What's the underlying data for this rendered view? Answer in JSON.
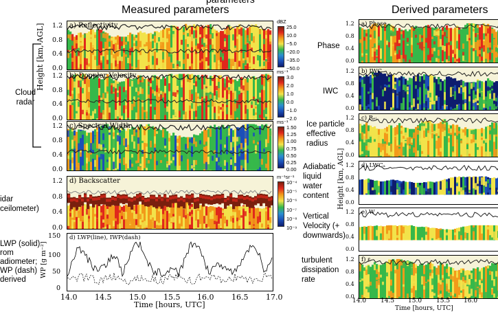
{
  "titles": {
    "partial_top": "parameters",
    "measured": "Measured parameters",
    "derived": "Derived parameters"
  },
  "left_labels": {
    "cloud_radar": [
      "Cloud",
      "radar"
    ],
    "lidar": [
      "idar",
      "ceilometer)"
    ],
    "lwp": [
      "LWP (solid)",
      "rom",
      "adiometer;",
      "WP (dash)",
      "derived"
    ]
  },
  "mid_labels": {
    "phase": "Phase",
    "iwc": "IWC",
    "ice_radius": [
      "Ice particle",
      "effective",
      "radius"
    ],
    "adiabatic": [
      "Adiabatic",
      "liquid",
      "water",
      "content"
    ],
    "vertical": [
      "Vertical",
      "Velocity (+",
      "downwards)"
    ],
    "turbulent": [
      "turbulent",
      "dissipation",
      "rate"
    ]
  },
  "measured": {
    "ylabel": "Height [km, AGL]",
    "yticks": [
      "0.0",
      "0.4",
      "0.8",
      "1.2"
    ],
    "panels": [
      {
        "title": "a) Reflectivity",
        "unit": "dBZ",
        "ticks": [
          "25.0",
          "10.0",
          "−5.0",
          "−20.0",
          "−35.0",
          "−50.0"
        ]
      },
      {
        "title": "b) Doppler Velocity",
        "unit": "ms⁻¹",
        "ticks": [
          "3.0",
          "2.0",
          "1.0",
          "0.0",
          "−1.0",
          "−2.0"
        ]
      },
      {
        "title": "c) Spectral Width",
        "unit": "ms⁻¹",
        "ticks": [
          "1.50",
          "1.25",
          "1.00",
          "0.75",
          "0.50",
          "0.25",
          "0.00"
        ]
      },
      {
        "title": "d) Backscatter",
        "unit": "m⁻¹sr⁻¹",
        "ticks": [
          "10⁻⁴",
          "10⁻⁵",
          "10⁻⁶",
          "10⁻⁷",
          "10⁻⁸",
          "10⁻⁹"
        ]
      }
    ],
    "lwp_panel": {
      "title": "d) LWP(line), IWP(dash)",
      "ylabel": "WP [g m⁻²]",
      "yticks": [
        "0",
        "50",
        "100",
        "150"
      ]
    },
    "xticks": [
      "14.0",
      "14.5",
      "15.0",
      "15.5",
      "16.0",
      "16.5",
      "17.0"
    ],
    "xlabel": "Time [hours, UTC]"
  },
  "derived": {
    "ylabel": "Height [km, AGL]",
    "yticks": [
      "0.0",
      "0.4",
      "0.8",
      "1.2"
    ],
    "panels": [
      {
        "title": "a) Phase"
      },
      {
        "title": "b) IWC"
      },
      {
        "title": "c) Rₑᵢ"
      },
      {
        "title": "d) LWCₐ"
      },
      {
        "title": "e) W"
      },
      {
        "title": "f) ε"
      }
    ],
    "xticks": [
      "14.0",
      "14.5",
      "15.0",
      "15.5",
      "16.0"
    ],
    "xlabel": "Time [hours, UTC]"
  },
  "colors": {
    "jet_top": "#7a1f0e",
    "jet_red": "#e0281c",
    "jet_orange": "#f29a1a",
    "jet_yellow": "#f2e34a",
    "jet_green": "#36b84a",
    "jet_blue": "#1c4fb8",
    "jet_navy": "#0d1c6e"
  }
}
